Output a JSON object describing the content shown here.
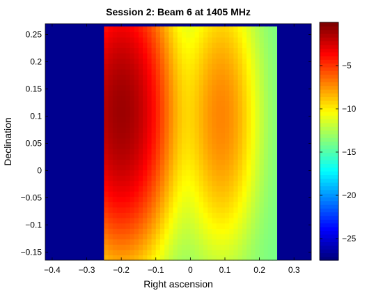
{
  "chart_data": {
    "type": "heatmap",
    "title": "Session 2: Beam 6 at 1405 MHz",
    "xlabel": "Right ascension",
    "ylabel": "Declination",
    "xlim": [
      -0.42,
      0.35
    ],
    "ylim": [
      -0.165,
      0.27
    ],
    "xticks": [
      -0.4,
      -0.3,
      -0.2,
      -0.1,
      0,
      0.1,
      0.2,
      0.3
    ],
    "xtick_labels": [
      "−0.4",
      "−0.3",
      "−0.2",
      "−0.1",
      "0",
      "0.1",
      "0.2",
      "0.3"
    ],
    "yticks": [
      -0.15,
      -0.1,
      -0.05,
      0,
      0.05,
      0.1,
      0.15,
      0.2,
      0.25
    ],
    "ytick_labels": [
      "−0.15",
      "−0.1",
      "−0.05",
      "0",
      "0.05",
      "0.1",
      "0.15",
      "0.2",
      "0.25"
    ],
    "colorbar": {
      "range": [
        -27.5,
        0
      ],
      "ticks": [
        -25,
        -20,
        -15,
        -10,
        -5
      ],
      "tick_labels": [
        "−25",
        "−20",
        "−15",
        "−10",
        "−5"
      ],
      "colormap": "jet"
    },
    "data_region": {
      "ra": [
        -0.25,
        0.25
      ],
      "dec": [
        -0.165,
        0.265
      ]
    },
    "background_value": -27.5,
    "components": [
      {
        "ra": -0.2,
        "dec": 0.11,
        "peak": -1.0,
        "sigma_ra": 0.11,
        "sigma_dec": 0.2
      },
      {
        "ra": 0.09,
        "dec": 0.1,
        "peak": -8.0,
        "sigma_ra": 0.085,
        "sigma_dec": 0.2
      }
    ],
    "floor_value": -14.0
  }
}
